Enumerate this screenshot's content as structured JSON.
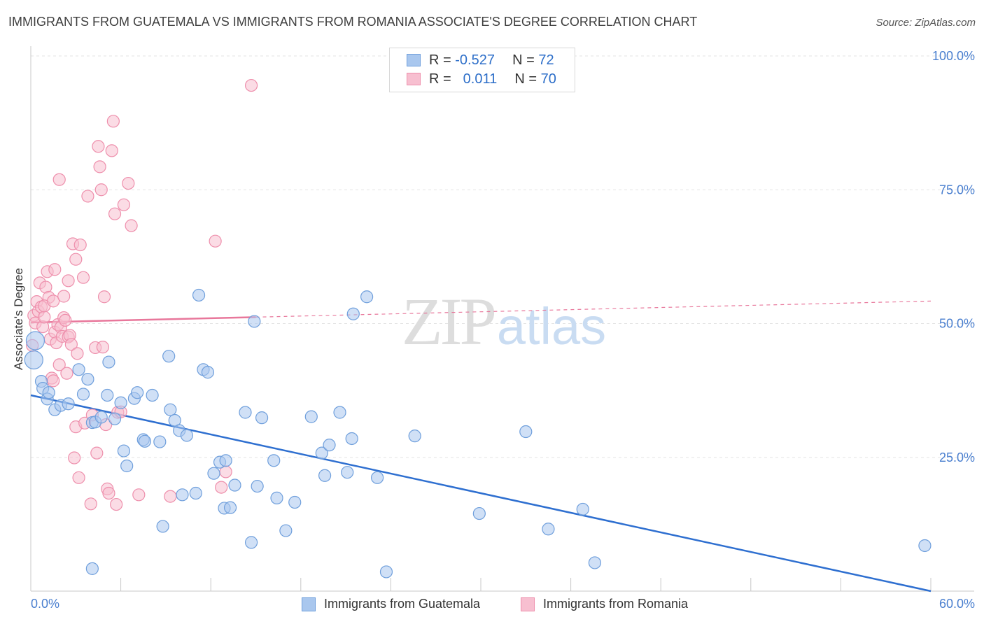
{
  "title": "IMMIGRANTS FROM GUATEMALA VS IMMIGRANTS FROM ROMANIA ASSOCIATE'S DEGREE CORRELATION CHART",
  "source": "Source: ZipAtlas.com",
  "legend": {
    "rows": [
      {
        "r_label": "R = ",
        "r_value": "-0.527",
        "n_label": "N = ",
        "n_value": "72"
      },
      {
        "r_label": "R = ",
        "r_value": "0.011",
        "n_label": "N = ",
        "n_value": "70"
      }
    ]
  },
  "bottom_legend": {
    "guatemala": "Immigrants from Guatemala",
    "romania": "Immigrants from Romania"
  },
  "colors": {
    "guatemala_fill": "#a9c7ee",
    "guatemala_stroke": "#6f9fdc",
    "guatemala_line": "#2e6fd0",
    "romania_fill": "#f7bfd0",
    "romania_stroke": "#ee8fac",
    "romania_line": "#e8779b",
    "axis_text": "#4a7fcf"
  },
  "chart_data": {
    "type": "scatter",
    "title": "IMMIGRANTS FROM GUATEMALA VS IMMIGRANTS FROM ROMANIA ASSOCIATE'S DEGREE CORRELATION CHART",
    "xlabel": "",
    "ylabel": "Associate's Degree",
    "xlim": [
      0,
      60
    ],
    "ylim": [
      0,
      100
    ],
    "x_tick_labels": [
      "0.0%",
      "60.0%"
    ],
    "y_tick_labels": [
      {
        "value": 100,
        "label": "100.0%"
      },
      {
        "value": 75,
        "label": "75.0%"
      },
      {
        "value": 50,
        "label": "50.0%"
      },
      {
        "value": 25,
        "label": "25.0%"
      }
    ],
    "grid": true,
    "legend_position": "top-center",
    "watermark": "ZIPatlas",
    "series": [
      {
        "name": "Immigrants from Guatemala",
        "R": -0.527,
        "N": 72,
        "trend": {
          "x": [
            0,
            60
          ],
          "y": [
            36.6,
            0
          ]
        },
        "points": [
          [
            0.2,
            43.2
          ],
          [
            0.3,
            46.8
          ],
          [
            0.7,
            39.2
          ],
          [
            0.8,
            37.9
          ],
          [
            1.1,
            35.9
          ],
          [
            1.2,
            37.1
          ],
          [
            1.6,
            33.9
          ],
          [
            2.0,
            34.7
          ],
          [
            2.5,
            35.0
          ],
          [
            3.2,
            41.4
          ],
          [
            3.5,
            36.8
          ],
          [
            3.8,
            39.6
          ],
          [
            4.1,
            31.5
          ],
          [
            4.3,
            31.6
          ],
          [
            4.7,
            32.5
          ],
          [
            5.1,
            36.6
          ],
          [
            5.2,
            42.8
          ],
          [
            5.6,
            32.2
          ],
          [
            6.0,
            35.2
          ],
          [
            6.2,
            26.2
          ],
          [
            6.4,
            23.4
          ],
          [
            6.9,
            36.0
          ],
          [
            7.1,
            37.1
          ],
          [
            7.5,
            28.3
          ],
          [
            7.6,
            28.0
          ],
          [
            8.1,
            36.6
          ],
          [
            8.6,
            27.9
          ],
          [
            8.8,
            12.1
          ],
          [
            9.2,
            43.9
          ],
          [
            9.3,
            33.9
          ],
          [
            9.6,
            31.9
          ],
          [
            9.9,
            30.0
          ],
          [
            10.1,
            18.0
          ],
          [
            10.4,
            29.1
          ],
          [
            11.0,
            18.3
          ],
          [
            11.2,
            55.3
          ],
          [
            11.5,
            41.4
          ],
          [
            11.8,
            40.9
          ],
          [
            12.2,
            22.0
          ],
          [
            12.6,
            24.1
          ],
          [
            12.9,
            15.5
          ],
          [
            13.0,
            24.4
          ],
          [
            13.3,
            15.6
          ],
          [
            13.6,
            19.8
          ],
          [
            14.3,
            33.4
          ],
          [
            14.7,
            9.1
          ],
          [
            14.9,
            50.4
          ],
          [
            15.1,
            19.6
          ],
          [
            15.4,
            32.4
          ],
          [
            16.2,
            24.4
          ],
          [
            16.4,
            17.4
          ],
          [
            17.0,
            11.3
          ],
          [
            17.6,
            16.6
          ],
          [
            18.7,
            32.6
          ],
          [
            19.4,
            25.8
          ],
          [
            19.6,
            21.6
          ],
          [
            19.9,
            27.3
          ],
          [
            20.6,
            33.4
          ],
          [
            21.1,
            22.2
          ],
          [
            21.4,
            28.5
          ],
          [
            21.5,
            51.8
          ],
          [
            22.4,
            55.0
          ],
          [
            23.1,
            21.2
          ],
          [
            23.7,
            3.6
          ],
          [
            25.6,
            29.0
          ],
          [
            29.9,
            14.5
          ],
          [
            33.0,
            29.8
          ],
          [
            34.5,
            11.6
          ],
          [
            36.8,
            15.3
          ],
          [
            37.6,
            5.3
          ],
          [
            59.6,
            8.5
          ],
          [
            4.1,
            4.2
          ]
        ]
      },
      {
        "name": "Immigrants from Romania",
        "R": 0.011,
        "N": 70,
        "trend": {
          "x": [
            0,
            60
          ],
          "y": [
            50.2,
            54.2
          ]
        },
        "points": [
          [
            0.1,
            45.9
          ],
          [
            0.2,
            51.5
          ],
          [
            0.3,
            50.1
          ],
          [
            0.4,
            54.1
          ],
          [
            0.5,
            52.3
          ],
          [
            0.6,
            57.6
          ],
          [
            0.7,
            53.1
          ],
          [
            0.8,
            49.4
          ],
          [
            0.9,
            51.2
          ],
          [
            1.0,
            56.8
          ],
          [
            1.1,
            59.7
          ],
          [
            1.2,
            54.9
          ],
          [
            1.3,
            47.1
          ],
          [
            1.4,
            39.8
          ],
          [
            1.5,
            39.3
          ],
          [
            1.6,
            48.4
          ],
          [
            1.7,
            46.4
          ],
          [
            1.8,
            49.8
          ],
          [
            1.9,
            42.3
          ],
          [
            1.9,
            76.9
          ],
          [
            2.0,
            49.3
          ],
          [
            2.1,
            47.6
          ],
          [
            2.2,
            51.1
          ],
          [
            2.3,
            50.6
          ],
          [
            2.4,
            40.7
          ],
          [
            2.5,
            47.5
          ],
          [
            2.5,
            58.0
          ],
          [
            2.6,
            47.8
          ],
          [
            2.7,
            46.1
          ],
          [
            2.8,
            64.9
          ],
          [
            2.9,
            24.9
          ],
          [
            3.0,
            30.7
          ],
          [
            3.1,
            44.4
          ],
          [
            3.2,
            21.2
          ],
          [
            3.3,
            64.7
          ],
          [
            3.5,
            58.6
          ],
          [
            3.6,
            31.4
          ],
          [
            3.8,
            73.8
          ],
          [
            4.0,
            16.3
          ],
          [
            4.1,
            32.9
          ],
          [
            4.3,
            45.5
          ],
          [
            4.4,
            25.8
          ],
          [
            4.5,
            83.1
          ],
          [
            4.6,
            79.3
          ],
          [
            4.7,
            75.0
          ],
          [
            4.8,
            45.6
          ],
          [
            5.0,
            31.1
          ],
          [
            5.1,
            19.1
          ],
          [
            5.2,
            18.3
          ],
          [
            5.4,
            82.3
          ],
          [
            5.5,
            87.8
          ],
          [
            5.6,
            70.5
          ],
          [
            5.7,
            16.2
          ],
          [
            5.8,
            33.4
          ],
          [
            6.0,
            33.5
          ],
          [
            6.2,
            72.2
          ],
          [
            6.5,
            76.2
          ],
          [
            6.7,
            68.3
          ],
          [
            7.2,
            18.0
          ],
          [
            9.3,
            17.7
          ],
          [
            12.3,
            65.4
          ],
          [
            12.7,
            19.4
          ],
          [
            13.0,
            22.3
          ],
          [
            14.7,
            94.5
          ],
          [
            0.9,
            53.3
          ],
          [
            1.5,
            54.2
          ],
          [
            2.2,
            55.1
          ],
          [
            3.0,
            62.0
          ],
          [
            1.6,
            60.1
          ],
          [
            4.9,
            55.0
          ]
        ]
      }
    ]
  }
}
